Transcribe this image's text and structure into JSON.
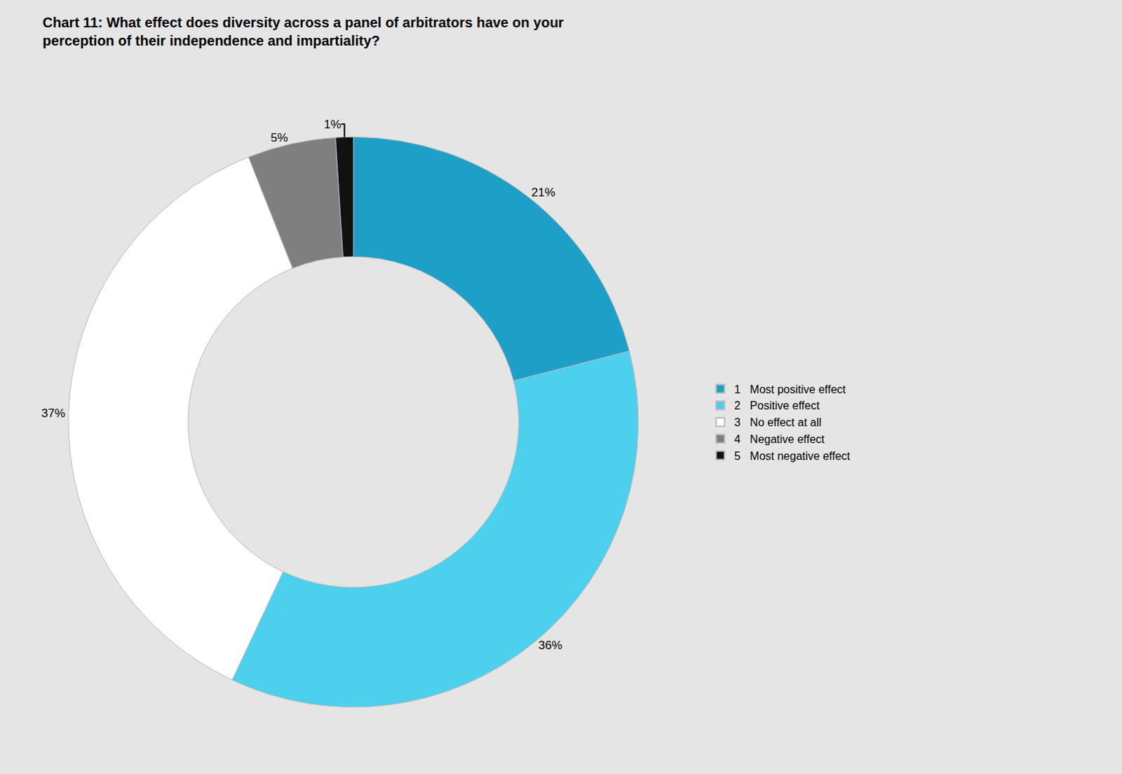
{
  "chart_data": {
    "type": "pie",
    "title": "Chart 11: What effect does diversity across a panel of arbitrators have on your\nperception of their independence and impartiality?",
    "categories": [
      "1   Most positive effect",
      "2   Positive effect",
      "3   No effect at all",
      "4   Negative effect",
      "5   Most negative effect"
    ],
    "values": [
      21,
      36,
      37,
      5,
      1
    ],
    "value_labels": [
      "21%",
      "36%",
      "37%",
      "5%",
      "1%"
    ],
    "colors": [
      "#1e9fc8",
      "#4dcfee",
      "#ffffff",
      "#7f7f7f",
      "#111111"
    ],
    "data_labels": true,
    "legend": "right"
  }
}
